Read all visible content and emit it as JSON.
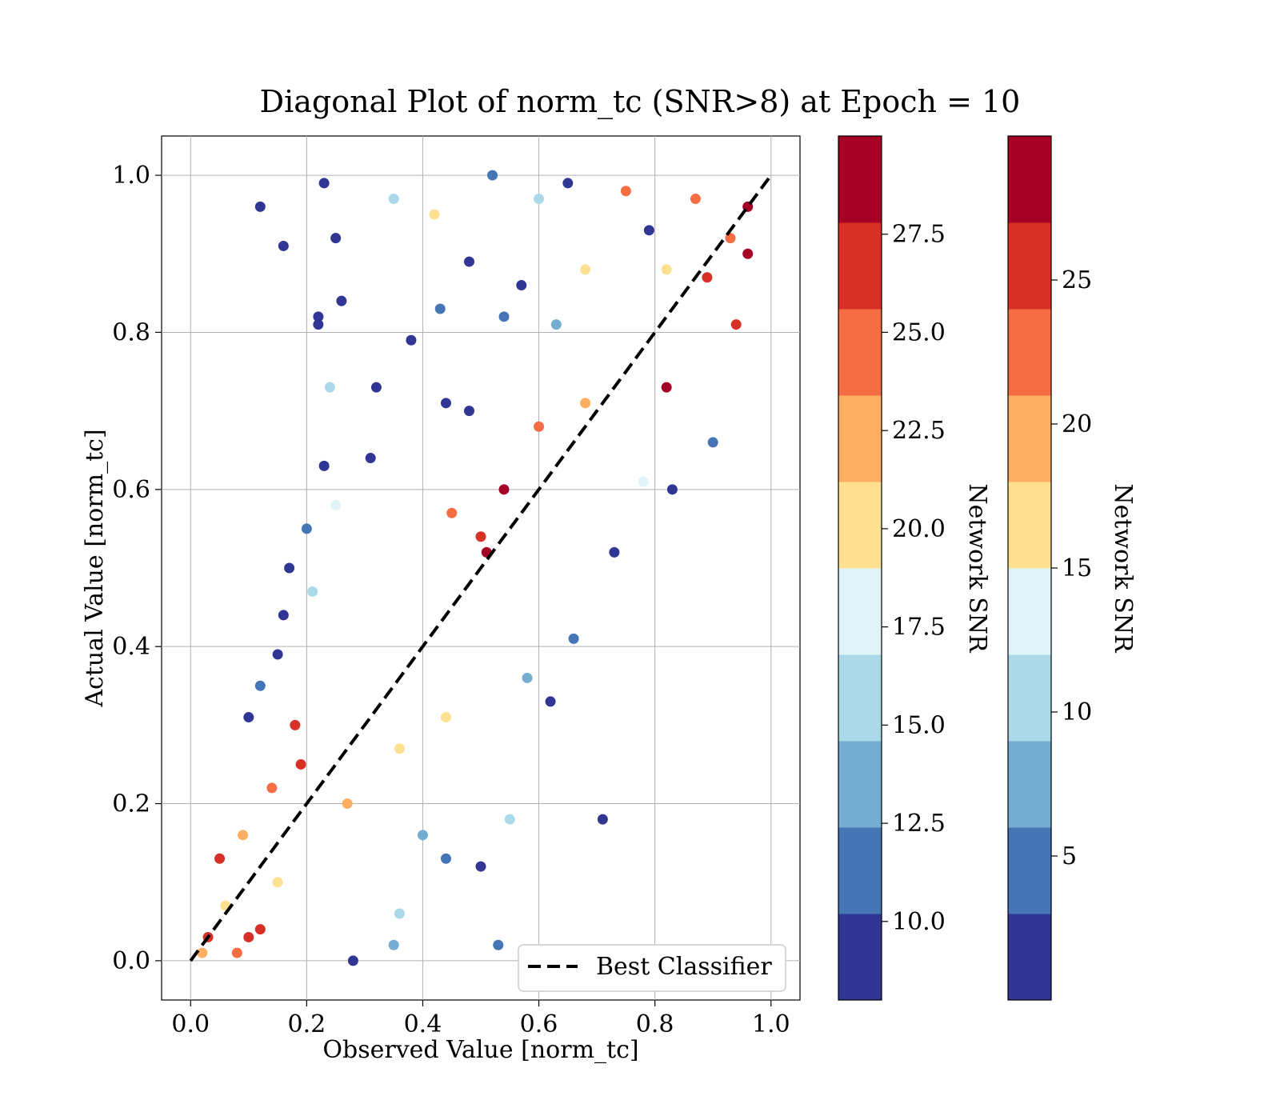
{
  "chart_data": {
    "type": "scatter",
    "title": "Diagonal Plot of norm_tc (SNR>8) at Epoch = 10",
    "xlabel": "Observed Value [norm_tc]",
    "ylabel": "Actual Value [norm_tc]",
    "xlim": [
      -0.05,
      1.05
    ],
    "ylim": [
      -0.05,
      1.05
    ],
    "xticks": [
      "0.0",
      "0.2",
      "0.4",
      "0.6",
      "0.8",
      "1.0"
    ],
    "yticks": [
      "0.0",
      "0.2",
      "0.4",
      "0.6",
      "0.8",
      "1.0"
    ],
    "grid": true,
    "legend": {
      "placement": "lower-right",
      "entries": [
        "Best Classifier"
      ]
    },
    "reference_line": {
      "name": "Best Classifier",
      "style": "dashed",
      "color": "#000000",
      "x": [
        0,
        1
      ],
      "y": [
        0,
        1
      ]
    },
    "colormap": [
      "#313695",
      "#4575b4",
      "#74add1",
      "#abd9e9",
      "#e0f3f8",
      "#fee090",
      "#fdae61",
      "#f46d43",
      "#d73027",
      "#a50026"
    ],
    "colorbars": [
      {
        "label": "Network SNR",
        "range": [
          8,
          30
        ],
        "ticks": [
          "10.0",
          "12.5",
          "15.0",
          "17.5",
          "20.0",
          "22.5",
          "25.0",
          "27.5"
        ],
        "tick_values": [
          10,
          12.5,
          15,
          17.5,
          20,
          22.5,
          25,
          27.5
        ]
      },
      {
        "label": "Network SNR",
        "range": [
          0,
          30
        ],
        "ticks": [
          "5",
          "10",
          "15",
          "20",
          "25"
        ],
        "tick_values": [
          5,
          10,
          15,
          20,
          25
        ]
      }
    ],
    "points": [
      [
        0.12,
        0.96,
        9
      ],
      [
        0.16,
        0.91,
        9
      ],
      [
        0.23,
        0.99,
        9
      ],
      [
        0.25,
        0.92,
        9
      ],
      [
        0.26,
        0.84,
        9
      ],
      [
        0.22,
        0.82,
        9
      ],
      [
        0.22,
        0.81,
        10
      ],
      [
        0.35,
        0.97,
        16
      ],
      [
        0.42,
        0.95,
        20
      ],
      [
        0.52,
        1.0,
        12
      ],
      [
        0.48,
        0.89,
        9
      ],
      [
        0.54,
        0.82,
        11
      ],
      [
        0.57,
        0.86,
        9
      ],
      [
        0.63,
        0.81,
        13
      ],
      [
        0.38,
        0.79,
        9
      ],
      [
        0.43,
        0.83,
        12
      ],
      [
        0.32,
        0.73,
        9
      ],
      [
        0.24,
        0.73,
        16
      ],
      [
        0.44,
        0.71,
        9
      ],
      [
        0.48,
        0.7,
        10
      ],
      [
        0.31,
        0.64,
        9
      ],
      [
        0.23,
        0.63,
        10
      ],
      [
        0.25,
        0.58,
        18
      ],
      [
        0.2,
        0.55,
        11
      ],
      [
        0.17,
        0.5,
        9
      ],
      [
        0.21,
        0.47,
        16
      ],
      [
        0.16,
        0.44,
        9
      ],
      [
        0.15,
        0.39,
        9
      ],
      [
        0.12,
        0.35,
        11
      ],
      [
        0.1,
        0.31,
        9
      ],
      [
        0.55,
        0.18,
        15
      ],
      [
        0.71,
        0.18,
        9
      ],
      [
        0.5,
        0.12,
        9
      ],
      [
        0.53,
        0.02,
        11
      ],
      [
        0.44,
        0.13,
        12
      ],
      [
        0.4,
        0.16,
        13
      ],
      [
        0.36,
        0.06,
        15
      ],
      [
        0.35,
        0.02,
        14
      ],
      [
        0.28,
        0.0,
        9
      ],
      [
        0.83,
        0.6,
        9
      ],
      [
        0.78,
        0.61,
        18
      ],
      [
        0.9,
        0.66,
        11
      ],
      [
        0.73,
        0.52,
        9
      ],
      [
        0.66,
        0.41,
        12
      ],
      [
        0.62,
        0.33,
        9
      ],
      [
        0.58,
        0.36,
        14
      ],
      [
        0.54,
        0.6,
        30
      ],
      [
        0.51,
        0.52,
        29
      ],
      [
        0.5,
        0.54,
        26
      ],
      [
        0.82,
        0.73,
        29
      ],
      [
        0.96,
        0.9,
        29
      ],
      [
        0.94,
        0.81,
        27
      ],
      [
        0.96,
        0.96,
        28
      ],
      [
        0.87,
        0.97,
        25
      ],
      [
        0.75,
        0.98,
        24
      ],
      [
        0.79,
        0.93,
        9
      ],
      [
        0.68,
        0.88,
        20
      ],
      [
        0.65,
        0.99,
        9
      ],
      [
        0.6,
        0.97,
        16
      ],
      [
        0.18,
        0.3,
        26
      ],
      [
        0.19,
        0.25,
        27
      ],
      [
        0.05,
        0.13,
        27
      ],
      [
        0.1,
        0.03,
        27
      ],
      [
        0.12,
        0.04,
        26
      ],
      [
        0.08,
        0.01,
        25
      ],
      [
        0.03,
        0.03,
        27
      ],
      [
        0.45,
        0.57,
        24
      ],
      [
        0.68,
        0.71,
        23
      ],
      [
        0.6,
        0.68,
        25
      ],
      [
        0.89,
        0.87,
        26
      ],
      [
        0.93,
        0.92,
        24
      ],
      [
        0.82,
        0.88,
        21
      ],
      [
        0.44,
        0.31,
        20
      ],
      [
        0.36,
        0.27,
        19
      ],
      [
        0.27,
        0.2,
        22
      ],
      [
        0.06,
        0.07,
        21
      ],
      [
        0.02,
        0.01,
        23
      ],
      [
        0.15,
        0.1,
        20
      ],
      [
        0.09,
        0.16,
        23
      ],
      [
        0.14,
        0.22,
        24
      ]
    ]
  }
}
